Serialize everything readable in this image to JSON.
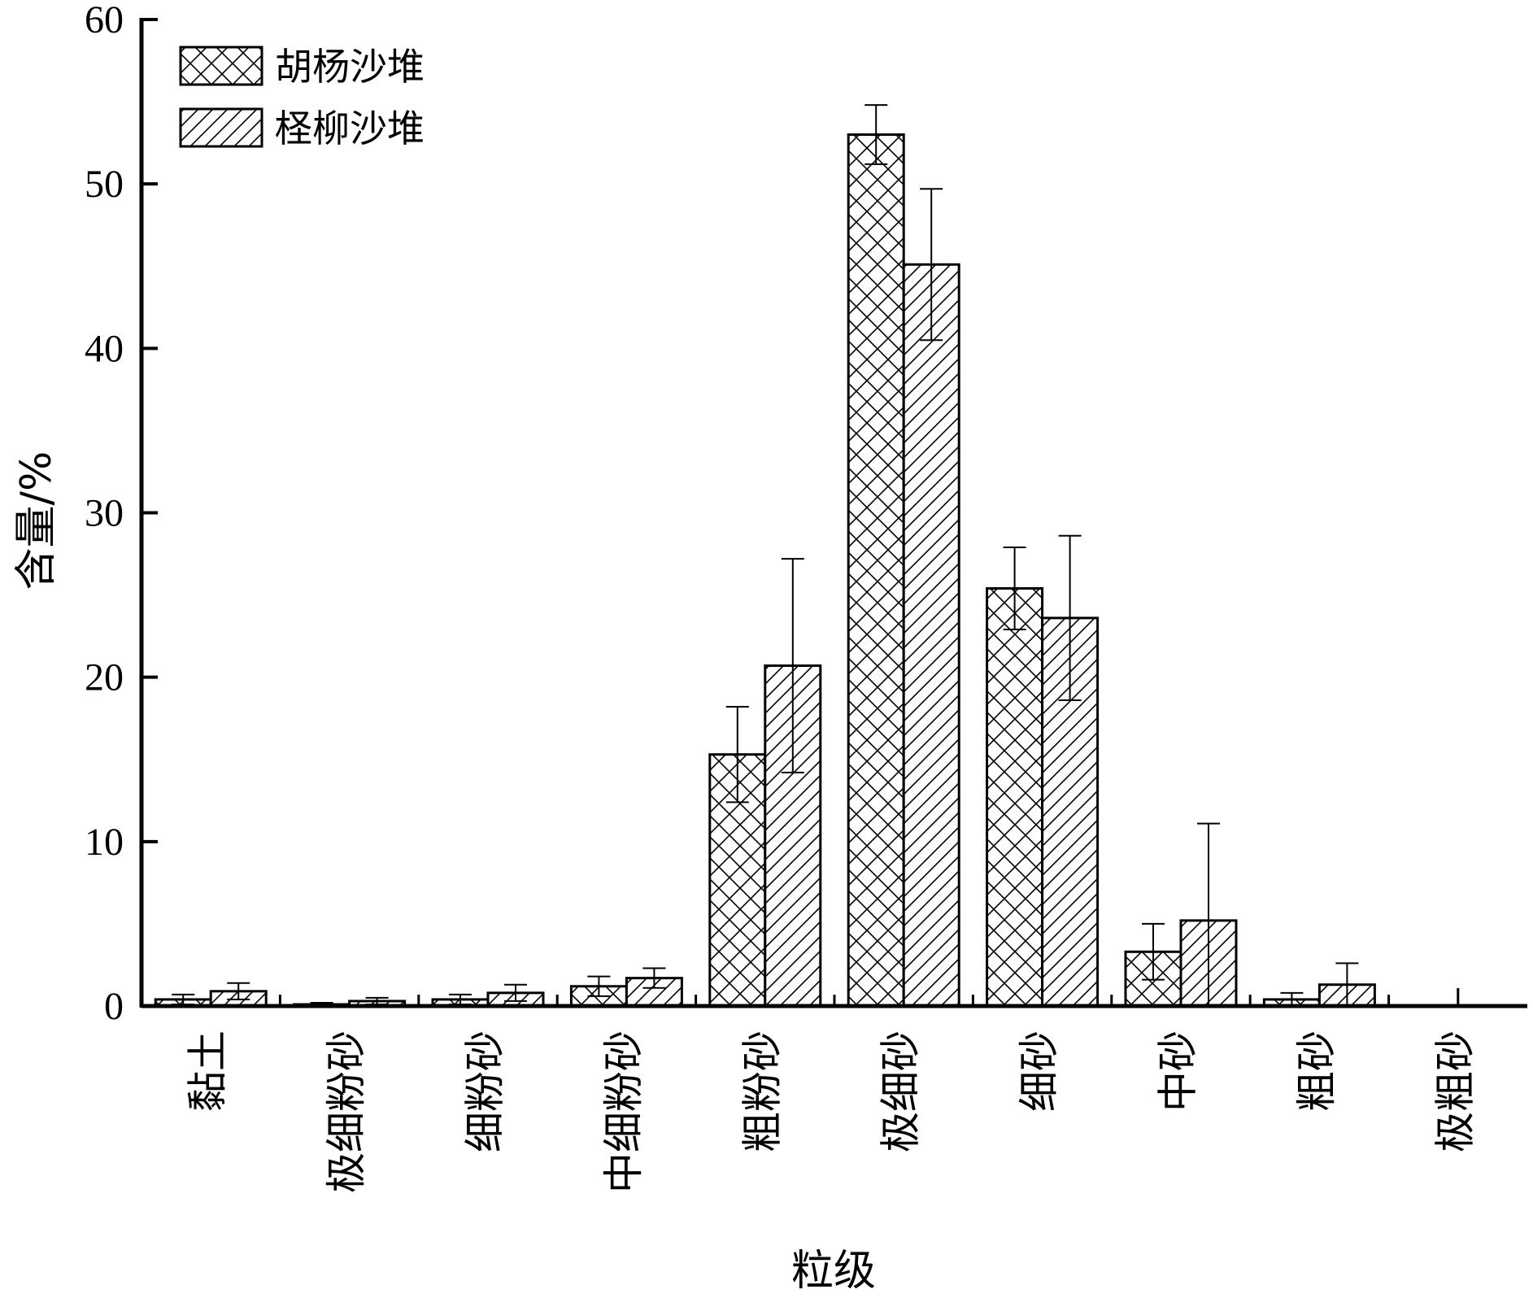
{
  "chart_data": {
    "type": "bar",
    "title": "",
    "xlabel": "粒级",
    "ylabel": "含量/%",
    "ylim": [
      0,
      60
    ],
    "yticks": [
      0,
      10,
      20,
      30,
      40,
      50,
      60
    ],
    "categories": [
      "黏土",
      "极细粉砂",
      "细粉砂",
      "中细粉砂",
      "粗粉砂",
      "极细砂",
      "细砂",
      "中砂",
      "粗砂",
      "极粗砂"
    ],
    "series": [
      {
        "name": "胡杨沙堆",
        "pattern": "crosshatch",
        "values": [
          0.4,
          0.1,
          0.4,
          1.2,
          15.3,
          53.0,
          25.4,
          3.3,
          0.4,
          0
        ],
        "error": [
          0.3,
          0.1,
          0.3,
          0.6,
          2.9,
          1.8,
          2.5,
          1.7,
          0.4,
          0
        ]
      },
      {
        "name": "柽柳沙堆",
        "pattern": "diagonal",
        "values": [
          0.9,
          0.3,
          0.8,
          1.7,
          20.7,
          45.1,
          23.6,
          5.2,
          1.3,
          0
        ],
        "error": [
          0.5,
          0.2,
          0.5,
          0.6,
          6.5,
          4.6,
          5.0,
          5.9,
          1.3,
          0
        ]
      }
    ],
    "grid": false,
    "legend_position": "top-left",
    "colors": {
      "bar_fill": "#ffffff",
      "line": "#000000"
    }
  }
}
